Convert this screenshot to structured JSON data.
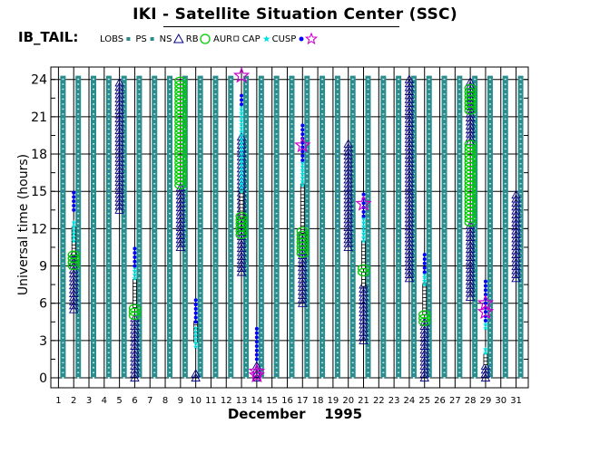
{
  "header": {
    "title": "IKI - Satellite Situation Center (SSC)"
  },
  "legend": {
    "label": "IB_TAIL:",
    "items": [
      {
        "key": "lobs",
        "label": "LOBS",
        "color": "#2a8c8c",
        "symbol": "small-square"
      },
      {
        "key": "ps",
        "label": "PS",
        "color": "#2a8c8c",
        "symbol": "small-square"
      },
      {
        "key": "ns",
        "label": "NS",
        "color": "#000080",
        "symbol": "triangle"
      },
      {
        "key": "rb",
        "label": "RB",
        "color": "#00cc00",
        "symbol": "circle"
      },
      {
        "key": "aur",
        "label": "AUR",
        "color": "#000000",
        "symbol": "open-square"
      },
      {
        "key": "cap",
        "label": "CAP",
        "color": "#00e0e0",
        "symbol": "star"
      },
      {
        "key": "cusp",
        "label": "CUSP",
        "color": "#0000ff",
        "symbol": "dot"
      },
      {
        "key": "star",
        "label": "",
        "color": "#cc00cc",
        "symbol": "star-outline"
      }
    ]
  },
  "chart_data": {
    "type": "scatter",
    "title": "IKI - Satellite Situation Center (SSC)",
    "xlabel": "December    1995",
    "ylabel": "Universal time  (hours)",
    "xlim": [
      0.5,
      31.8
    ],
    "ylim": [
      -0.8,
      25
    ],
    "x_ticks": [
      1,
      2,
      3,
      4,
      5,
      6,
      7,
      8,
      9,
      10,
      11,
      12,
      13,
      14,
      15,
      16,
      17,
      18,
      19,
      20,
      21,
      22,
      23,
      24,
      25,
      26,
      27,
      28,
      29,
      30,
      31
    ],
    "y_ticks": [
      0,
      3,
      6,
      9,
      12,
      15,
      18,
      21,
      24
    ],
    "grid": true,
    "series": [
      {
        "name": "LOBS",
        "color": "#2a8c8c",
        "days": [
          1,
          2,
          3,
          4,
          5,
          6,
          7,
          8,
          9,
          10,
          11,
          12,
          13,
          14,
          15,
          16,
          17,
          18,
          19,
          20,
          21,
          22,
          23,
          24,
          25,
          26,
          27,
          28,
          29,
          30,
          31
        ],
        "from": 0,
        "to": 24.3
      },
      {
        "name": "NS",
        "color": "#000080",
        "segments": [
          {
            "day": 2,
            "from": 5.5,
            "to": 10
          },
          {
            "day": 5,
            "from": 13.5,
            "to": 24
          },
          {
            "day": 6,
            "from": 0,
            "to": 5
          },
          {
            "day": 9,
            "from": 10.5,
            "to": 15.5
          },
          {
            "day": 10,
            "from": 0,
            "to": 0.5
          },
          {
            "day": 13,
            "from": 8.5,
            "to": 19.5
          },
          {
            "day": 14,
            "from": 0,
            "to": 1
          },
          {
            "day": 17,
            "from": 6,
            "to": 12
          },
          {
            "day": 20,
            "from": 10.5,
            "to": 19
          },
          {
            "day": 21,
            "from": 3,
            "to": 7.5
          },
          {
            "day": 24,
            "from": 8,
            "to": 24
          },
          {
            "day": 25,
            "from": 0,
            "to": 4.5
          },
          {
            "day": 28,
            "from": 6.5,
            "to": 12.5
          },
          {
            "day": 28,
            "from": 19,
            "to": 24
          },
          {
            "day": 29,
            "from": 0,
            "to": 1.2
          },
          {
            "day": 31,
            "from": 8,
            "to": 14.8
          }
        ]
      },
      {
        "name": "RB",
        "color": "#00cc00",
        "segments": [
          {
            "day": 2,
            "from": 9,
            "to": 10
          },
          {
            "day": 6,
            "from": 5,
            "to": 5.8
          },
          {
            "day": 9,
            "from": 15.5,
            "to": 24
          },
          {
            "day": 13,
            "from": 11.5,
            "to": 13
          },
          {
            "day": 17,
            "from": 10,
            "to": 11.8
          },
          {
            "day": 21,
            "from": 8.5,
            "to": 8.9
          },
          {
            "day": 25,
            "from": 4.5,
            "to": 5.2
          },
          {
            "day": 28,
            "from": 12.5,
            "to": 19
          },
          {
            "day": 28,
            "from": 21.5,
            "to": 23.5
          }
        ]
      },
      {
        "name": "AUR",
        "color": "#000000",
        "segments": [
          {
            "day": 2,
            "from": 10,
            "to": 12
          },
          {
            "day": 6,
            "from": 5.8,
            "to": 8
          },
          {
            "day": 10,
            "from": 3,
            "to": 4.5
          },
          {
            "day": 13,
            "from": 13,
            "to": 15
          },
          {
            "day": 17,
            "from": 11.8,
            "to": 15.5
          },
          {
            "day": 21,
            "from": 7.5,
            "to": 8.5
          },
          {
            "day": 21,
            "from": 8.9,
            "to": 11
          },
          {
            "day": 25,
            "from": 5.2,
            "to": 7.5
          },
          {
            "day": 29,
            "from": 1.2,
            "to": 2
          }
        ]
      },
      {
        "name": "CAP",
        "color": "#00e0e0",
        "segments": [
          {
            "day": 2,
            "from": 11,
            "to": 12.5
          },
          {
            "day": 6,
            "from": 8,
            "to": 9
          },
          {
            "day": 10,
            "from": 2.5,
            "to": 4
          },
          {
            "day": 13,
            "from": 15,
            "to": 22
          },
          {
            "day": 17,
            "from": 15.5,
            "to": 17.5
          },
          {
            "day": 21,
            "from": 11,
            "to": 12.8
          },
          {
            "day": 25,
            "from": 7.5,
            "to": 8.5
          },
          {
            "day": 29,
            "from": 4,
            "to": 4.6
          },
          {
            "day": 29,
            "from": 2,
            "to": 2.5
          }
        ]
      },
      {
        "name": "CUSP",
        "color": "#0000ff",
        "segments": [
          {
            "day": 2,
            "from": 13.5,
            "to": 15
          },
          {
            "day": 6,
            "from": 9,
            "to": 10.5
          },
          {
            "day": 10,
            "from": 4.5,
            "to": 6.5
          },
          {
            "day": 13,
            "from": 22,
            "to": 23
          },
          {
            "day": 14,
            "from": 1.5,
            "to": 4
          },
          {
            "day": 17,
            "from": 17.5,
            "to": 20.5
          },
          {
            "day": 21,
            "from": 13,
            "to": 15
          },
          {
            "day": 25,
            "from": 8.5,
            "to": 10
          },
          {
            "day": 29,
            "from": 4.6,
            "to": 8
          }
        ]
      },
      {
        "name": "STAR",
        "color": "#cc00cc",
        "points": [
          {
            "day": 13,
            "y": 24.3
          },
          {
            "day": 14,
            "y": 0.5
          },
          {
            "day": 14,
            "y": 0.2
          },
          {
            "day": 17,
            "y": 18.7
          },
          {
            "day": 21,
            "y": 14
          },
          {
            "day": 29,
            "y": 5.3
          },
          {
            "day": 29,
            "y": 6
          }
        ]
      }
    ]
  }
}
